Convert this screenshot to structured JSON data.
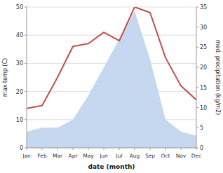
{
  "chart_data": {
    "type": "line",
    "xlabel": "date (month)",
    "ylabel": "max temp (C)",
    "y2label": "med. precipitation (kg/m2)",
    "categories": [
      "Jan",
      "Feb",
      "Mar",
      "Apr",
      "May",
      "Jun",
      "Jul",
      "Aug",
      "Sep",
      "Oct",
      "Nov",
      "Dec"
    ],
    "series": [
      {
        "type": "area",
        "axis": "y2",
        "color": "#c5d8f0",
        "values": [
          4,
          5,
          5,
          7,
          13,
          20,
          27,
          34,
          22,
          7,
          4,
          3
        ]
      },
      {
        "type": "line",
        "color": "#c0504d",
        "values": [
          14,
          15,
          25,
          36,
          37,
          41,
          38,
          50,
          48,
          32,
          22,
          17
        ]
      }
    ],
    "ylim": [
      0,
      50
    ],
    "yticks": [
      0,
      10,
      20,
      30,
      40,
      50
    ],
    "y2lim": [
      0,
      35
    ],
    "y2ticks": [
      0,
      5,
      10,
      15,
      20,
      25,
      30,
      35
    ],
    "grid": true
  }
}
